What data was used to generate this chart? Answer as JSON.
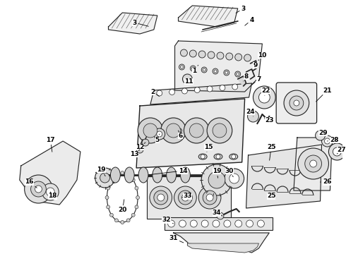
{
  "bg_color": "#ffffff",
  "line_color": "#222222",
  "figsize": [
    4.9,
    3.6
  ],
  "dpi": 100
}
